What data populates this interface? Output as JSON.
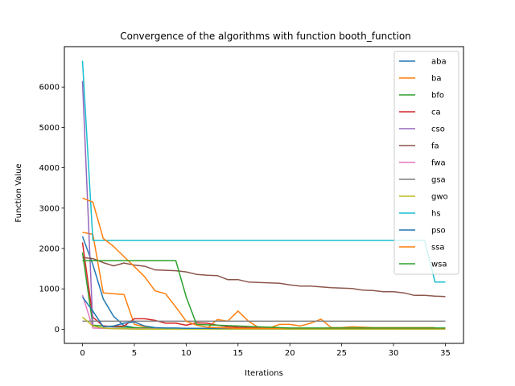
{
  "chart_data": {
    "type": "line",
    "title": "Convergence of the algorithms with function booth_function",
    "xlabel": "Iterations",
    "ylabel": "Function Value",
    "xlim": [
      -1.75,
      36.75
    ],
    "ylim": [
      -350,
      7000
    ],
    "xticks": [
      0,
      5,
      10,
      15,
      20,
      25,
      30,
      35
    ],
    "yticks": [
      0,
      1000,
      2000,
      3000,
      4000,
      5000,
      6000
    ],
    "grid": false,
    "legend_position": "top-right",
    "series": [
      {
        "name": "aba",
        "color": "#1f77b4",
        "x": [
          0,
          1,
          2,
          3,
          4,
          5,
          6,
          7,
          8,
          9,
          10,
          11,
          12,
          13,
          14,
          15,
          16,
          17,
          18,
          19,
          20,
          21,
          22,
          23,
          24,
          25,
          26,
          27,
          28,
          29,
          30,
          31,
          32,
          33,
          34,
          35
        ],
        "y": [
          2300,
          1600,
          750,
          320,
          90,
          40,
          20,
          15,
          10,
          10,
          8,
          8,
          8,
          8,
          8,
          8,
          8,
          8,
          8,
          8,
          8,
          8,
          8,
          8,
          8,
          8,
          8,
          8,
          8,
          8,
          8,
          8,
          8,
          8,
          8,
          8
        ]
      },
      {
        "name": "ba",
        "color": "#ff7f0e",
        "x": [
          0,
          1,
          2,
          3,
          4,
          5,
          6,
          7,
          8,
          9,
          10,
          11,
          12,
          13,
          14,
          15,
          16,
          17,
          18,
          19,
          20,
          21,
          22,
          23,
          24,
          25,
          26,
          27,
          28,
          29,
          30,
          31,
          32,
          33,
          34
        ],
        "y": [
          2400,
          2350,
          900,
          880,
          860,
          120,
          60,
          30,
          20,
          20,
          15,
          15,
          20,
          240,
          200,
          450,
          200,
          40,
          30,
          120,
          120,
          80,
          150,
          250,
          40,
          40,
          60,
          50,
          40,
          40,
          40,
          40,
          40,
          40,
          40
        ]
      },
      {
        "name": "bfo",
        "color": "#2ca02c",
        "x": [
          0,
          1,
          2,
          3,
          4,
          5,
          6,
          7,
          8,
          9,
          10,
          11,
          12,
          13,
          14,
          15,
          16,
          17,
          18,
          19,
          20,
          21,
          22,
          23,
          24,
          25,
          26,
          27,
          28,
          29,
          30,
          31,
          32,
          33,
          34,
          35
        ],
        "y": [
          1900,
          100,
          80,
          60,
          50,
          40,
          30,
          20,
          20,
          15,
          15,
          15,
          15,
          15,
          15,
          15,
          15,
          15,
          15,
          15,
          15,
          15,
          15,
          15,
          15,
          15,
          15,
          15,
          15,
          15,
          15,
          15,
          15,
          15,
          15,
          15
        ]
      },
      {
        "name": "ca",
        "color": "#d62728",
        "x": [
          0,
          1,
          2,
          3,
          4,
          5,
          6,
          7,
          8,
          9,
          10,
          11,
          12,
          13,
          14,
          15,
          16,
          17,
          18,
          19,
          20,
          21,
          22,
          23,
          24,
          25,
          26,
          27,
          28,
          29,
          30,
          31,
          32,
          33,
          34,
          35
        ],
        "y": [
          2150,
          300,
          80,
          70,
          80,
          260,
          260,
          220,
          150,
          150,
          100,
          160,
          150,
          100,
          60,
          50,
          40,
          30,
          20,
          20,
          20,
          20,
          20,
          20,
          20,
          20,
          20,
          20,
          20,
          20,
          20,
          20,
          20,
          20,
          20,
          20
        ]
      },
      {
        "name": "cso",
        "color": "#9467bd",
        "x": [
          0,
          1,
          2,
          3,
          4,
          5,
          6,
          7,
          8,
          9,
          10,
          11,
          12,
          13,
          14,
          15,
          16,
          17,
          18,
          19,
          20,
          21,
          22,
          23,
          24,
          25,
          26,
          27,
          28,
          29,
          30,
          31,
          32,
          33,
          34,
          35
        ],
        "y": [
          6150,
          80,
          30,
          20,
          15,
          10,
          10,
          8,
          8,
          8,
          8,
          8,
          8,
          8,
          8,
          8,
          8,
          8,
          8,
          8,
          8,
          8,
          8,
          8,
          8,
          8,
          8,
          8,
          8,
          8,
          8,
          8,
          8,
          8,
          8,
          8
        ]
      },
      {
        "name": "fa",
        "color": "#8c564b",
        "x": [
          0,
          1,
          2,
          3,
          4,
          5,
          6,
          7,
          8,
          9,
          10,
          11,
          12,
          13,
          14,
          15,
          16,
          17,
          18,
          19,
          20,
          21,
          22,
          23,
          24,
          25,
          26,
          27,
          28,
          29,
          30,
          31,
          32,
          33,
          34,
          35
        ],
        "y": [
          1780,
          1750,
          1650,
          1570,
          1640,
          1590,
          1560,
          1470,
          1460,
          1450,
          1420,
          1360,
          1340,
          1330,
          1230,
          1230,
          1170,
          1160,
          1150,
          1140,
          1100,
          1070,
          1070,
          1050,
          1030,
          1020,
          1010,
          970,
          960,
          930,
          930,
          900,
          840,
          840,
          820,
          810
        ]
      },
      {
        "name": "fwa",
        "color": "#e377c2",
        "x": [
          0,
          1,
          2,
          3,
          4,
          5,
          6,
          7,
          8,
          9,
          10,
          11,
          12,
          13,
          14,
          15,
          16,
          17,
          18,
          19,
          20,
          21,
          22,
          23,
          24,
          25,
          26,
          27,
          28,
          29,
          30,
          31,
          32,
          33,
          34,
          35
        ],
        "y": [
          850,
          30,
          20,
          15,
          10,
          10,
          8,
          8,
          8,
          8,
          8,
          8,
          8,
          8,
          8,
          8,
          8,
          8,
          8,
          8,
          8,
          8,
          8,
          8,
          8,
          8,
          8,
          8,
          8,
          8,
          8,
          8,
          8,
          8,
          8,
          8
        ]
      },
      {
        "name": "gsa",
        "color": "#7f7f7f",
        "x": [
          0,
          1,
          2,
          3,
          4,
          5,
          6,
          7,
          8,
          9,
          10,
          11,
          12,
          13,
          14,
          15,
          16,
          17,
          18,
          19,
          20,
          21,
          22,
          23,
          24,
          25,
          26,
          27,
          28,
          29,
          30,
          31,
          32,
          33,
          34,
          35
        ],
        "y": [
          200,
          200,
          200,
          200,
          200,
          200,
          200,
          200,
          200,
          200,
          200,
          200,
          200,
          200,
          200,
          200,
          200,
          200,
          200,
          200,
          200,
          200,
          200,
          200,
          200,
          200,
          200,
          200,
          200,
          200,
          200,
          200,
          200,
          200,
          200,
          200
        ]
      },
      {
        "name": "gwo",
        "color": "#bcbd22",
        "x": [
          0,
          1,
          2,
          3,
          4,
          5,
          6,
          7,
          8,
          9,
          10,
          11,
          12,
          13,
          14,
          15,
          16,
          17,
          18,
          19,
          20,
          21,
          22,
          23,
          24,
          25,
          26,
          27,
          28,
          29,
          30,
          31,
          32,
          33,
          34,
          35
        ],
        "y": [
          300,
          80,
          30,
          15,
          10,
          5,
          5,
          5,
          5,
          5,
          5,
          5,
          5,
          5,
          5,
          5,
          5,
          5,
          5,
          5,
          5,
          5,
          5,
          5,
          5,
          5,
          5,
          5,
          5,
          5,
          5,
          5,
          5,
          5,
          5,
          5
        ]
      },
      {
        "name": "hs",
        "color": "#17becf",
        "x": [
          0,
          1,
          2,
          3,
          4,
          5,
          6,
          7,
          8,
          9,
          10,
          11,
          12,
          13,
          14,
          15,
          16,
          17,
          18,
          19,
          20,
          21,
          22,
          23,
          24,
          25,
          26,
          27,
          28,
          29,
          30,
          31,
          32,
          33,
          34,
          35
        ],
        "y": [
          6650,
          2200,
          2200,
          2200,
          2200,
          2200,
          2200,
          2200,
          2200,
          2200,
          2200,
          2200,
          2200,
          2200,
          2200,
          2200,
          2200,
          2200,
          2200,
          2200,
          2200,
          2200,
          2200,
          2200,
          2200,
          2200,
          2200,
          2200,
          2200,
          2200,
          2200,
          2200,
          2200,
          2200,
          1170,
          1170
        ]
      },
      {
        "name": "pso",
        "color": "#1f77b4",
        "x": [
          0,
          1,
          2,
          3,
          4,
          5,
          6,
          7,
          8,
          9,
          10,
          11,
          12,
          13,
          14,
          15,
          16,
          17,
          18,
          19,
          20,
          21,
          22,
          23,
          24,
          25,
          26,
          27,
          28,
          29,
          30,
          31,
          32,
          33,
          34,
          35
        ],
        "y": [
          800,
          450,
          60,
          80,
          150,
          180,
          80,
          40,
          30,
          30,
          25,
          25,
          25,
          20,
          20,
          20,
          20,
          20,
          20,
          20,
          20,
          20,
          20,
          20,
          20,
          20,
          20,
          20,
          20,
          20,
          20,
          20,
          20,
          20,
          20,
          20
        ]
      },
      {
        "name": "ssa",
        "color": "#ff7f0e",
        "x": [
          0,
          1,
          2,
          3,
          4,
          5,
          6,
          7,
          8,
          9,
          10,
          11,
          12,
          13,
          14,
          15,
          16,
          17,
          18,
          19,
          20,
          21,
          22,
          23,
          24,
          25,
          26,
          27,
          28,
          29,
          30,
          31,
          32,
          33,
          34,
          35
        ],
        "y": [
          3250,
          3150,
          2250,
          2050,
          1800,
          1550,
          1300,
          950,
          880,
          550,
          200,
          100,
          50,
          40,
          30,
          20,
          20,
          20,
          20,
          20,
          20,
          20,
          20,
          20,
          20,
          20,
          20,
          20,
          20,
          20,
          20,
          20,
          20,
          20,
          20,
          20
        ]
      },
      {
        "name": "wsa",
        "color": "#2ca02c",
        "x": [
          0,
          1,
          2,
          3,
          4,
          5,
          6,
          7,
          8,
          9,
          10,
          11,
          12,
          13,
          14,
          15,
          16,
          17,
          18,
          19,
          20,
          21,
          22,
          23,
          24,
          25,
          26,
          27,
          28,
          29,
          30,
          31,
          32,
          33,
          34,
          35
        ],
        "y": [
          1700,
          1700,
          1700,
          1700,
          1700,
          1700,
          1700,
          1700,
          1700,
          1700,
          800,
          120,
          110,
          100,
          90,
          80,
          70,
          60,
          50,
          40,
          30,
          30,
          30,
          30,
          30,
          30,
          30,
          30,
          30,
          30,
          30,
          30,
          30,
          30,
          30,
          30
        ]
      }
    ]
  }
}
